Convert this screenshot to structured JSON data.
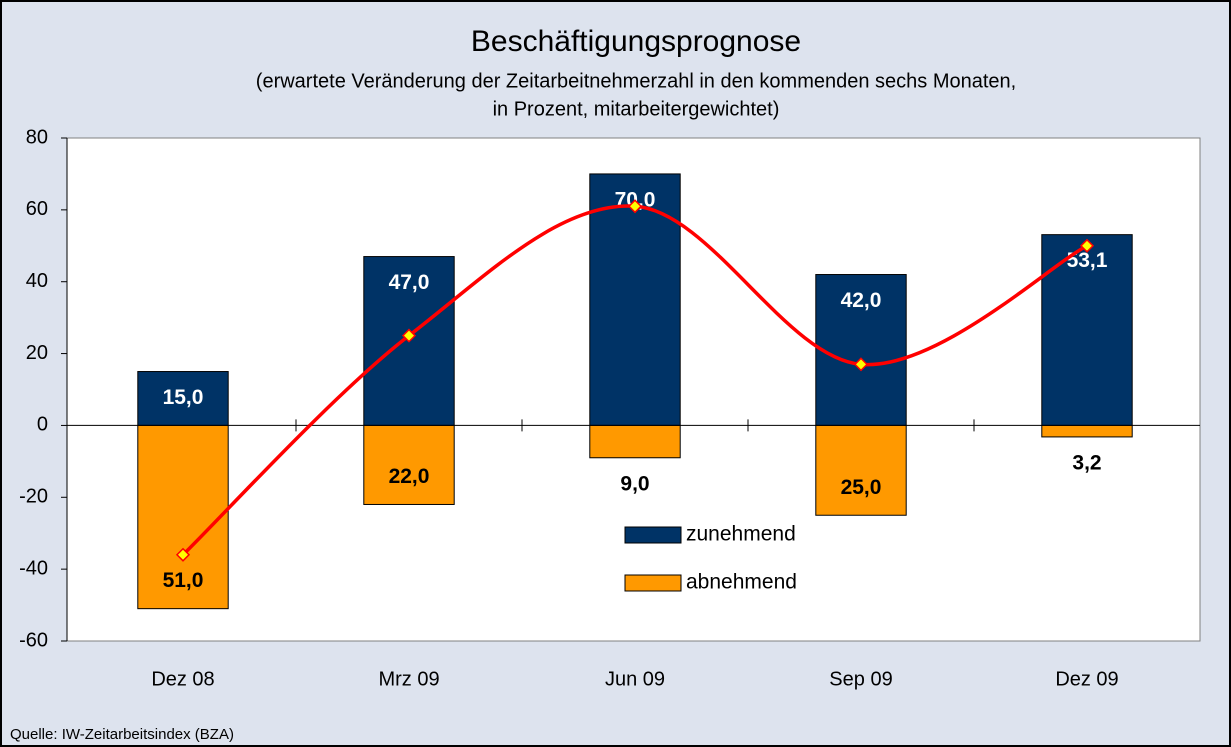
{
  "chart_data": {
    "type": "bar",
    "title": "Beschäftigungsprognose",
    "subtitle": [
      "(erwartete Veränderung der Zeitarbeitnehmerzahl in den kommenden sechs Monaten,",
      "in Prozent, mitarbeitergewichtet)"
    ],
    "source": "Quelle: IW-Zeitarbeitsindex (BZA)",
    "categories": [
      "Dez 08",
      "Mrz 09",
      "Jun 09",
      "Sep 09",
      "Dez 09"
    ],
    "series": [
      {
        "name": "zunehmend",
        "color": "#003366",
        "values": [
          15,
          47,
          70,
          42,
          53.1
        ],
        "value_labels": [
          "15,0",
          "47,0",
          "70,0",
          "42,0",
          "53,1"
        ]
      },
      {
        "name": "abnehmend",
        "color": "#ff9900",
        "values": [
          -51,
          -22,
          -9,
          -25,
          -3.2
        ],
        "value_labels": [
          "51,0",
          "22,0",
          "9,0",
          "25,0",
          "3,2"
        ]
      }
    ],
    "line": {
      "color": "#ff0000",
      "marker_color": "#ffff00",
      "values": [
        -36,
        25,
        61,
        17,
        50
      ]
    },
    "ylim": [
      -60,
      80
    ],
    "yticks": [
      -60,
      -40,
      -20,
      0,
      20,
      40,
      60,
      80
    ],
    "grid": false
  }
}
